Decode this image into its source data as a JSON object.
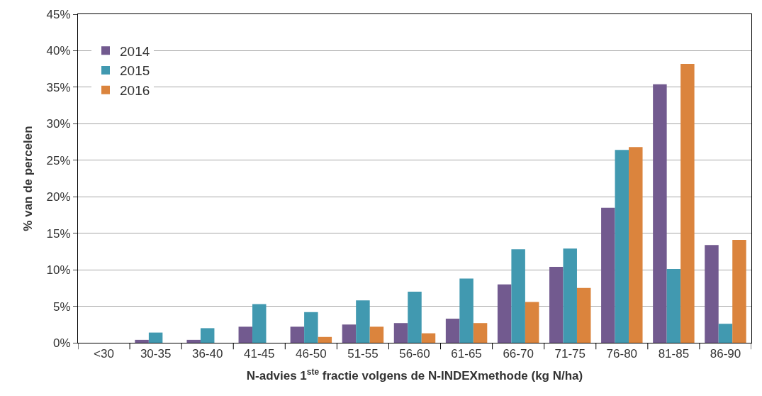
{
  "chart_data": {
    "type": "bar",
    "xlabel": "N-advies 1$^{ste}$ fractie volgens de N-INDEXmethode (kg N/ha)",
    "ylabel": "% van de percelen",
    "categories": [
      "<30",
      "30-35",
      "36-40",
      "41-45",
      "46-50",
      "51-55",
      "56-60",
      "61-65",
      "66-70",
      "71-75",
      "76-80",
      "81-85",
      "86-90"
    ],
    "series": [
      {
        "name": "2014",
        "color": "#725a8f",
        "values": [
          0,
          0.4,
          0.4,
          2.2,
          2.2,
          2.5,
          2.7,
          3.3,
          8.0,
          10.4,
          18.5,
          35.4,
          13.4
        ]
      },
      {
        "name": "2015",
        "color": "#4199b0",
        "values": [
          0,
          1.4,
          2.0,
          5.3,
          4.2,
          5.8,
          7.0,
          8.8,
          12.8,
          12.9,
          26.4,
          10.1,
          2.6
        ]
      },
      {
        "name": "2016",
        "color": "#db843d",
        "values": [
          0,
          0,
          0,
          0,
          0.8,
          2.2,
          1.3,
          2.7,
          5.6,
          7.5,
          26.8,
          38.2,
          14.1
        ]
      }
    ],
    "ylim": [
      0,
      45
    ],
    "yticks": [
      {
        "value": 0,
        "label": "0%"
      },
      {
        "value": 5,
        "label": "5%"
      },
      {
        "value": 10,
        "label": "10%"
      },
      {
        "value": 15,
        "label": "15%"
      },
      {
        "value": 20,
        "label": "20%"
      },
      {
        "value": 25,
        "label": "25%"
      },
      {
        "value": 30,
        "label": "30%"
      },
      {
        "value": 35,
        "label": "35%"
      },
      {
        "value": 40,
        "label": "40%"
      },
      {
        "value": 45,
        "label": "45%"
      }
    ],
    "grid": "y",
    "legend": "top left"
  }
}
